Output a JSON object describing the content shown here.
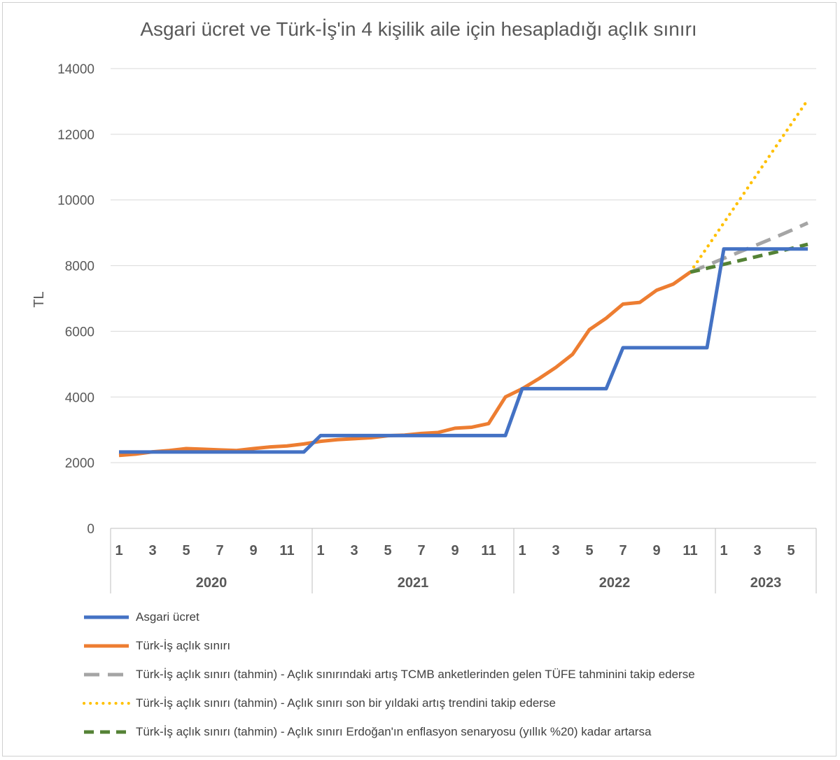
{
  "chart_data": {
    "type": "line",
    "title": "Asgari ücret ve Türk-İş'in 4 kişilik aile için hesapladığı açlık sınırı",
    "ylabel": "TL",
    "xlabel": "",
    "ylim": [
      0,
      14000
    ],
    "yticks": [
      "0",
      "2000",
      "4000",
      "6000",
      "8000",
      "10000",
      "12000",
      "14000"
    ],
    "years": [
      {
        "label": "2020",
        "months": 12
      },
      {
        "label": "2021",
        "months": 12
      },
      {
        "label": "2022",
        "months": 12
      },
      {
        "label": "2023",
        "months": 6
      }
    ],
    "month_labels_shown": [
      "1",
      "3",
      "5",
      "7",
      "9",
      "11"
    ],
    "grid": true,
    "legend_position": "bottom",
    "series": [
      {
        "name": "Asgari ücret",
        "color": "#4472C4",
        "dash": "solid",
        "start": 0,
        "values": [
          2324.7,
          2324.7,
          2324.7,
          2324.7,
          2324.7,
          2324.7,
          2324.7,
          2324.7,
          2324.7,
          2324.7,
          2324.7,
          2324.7,
          2825.9,
          2825.9,
          2825.9,
          2825.9,
          2825.9,
          2825.9,
          2825.9,
          2825.9,
          2825.9,
          2825.9,
          2825.9,
          2825.9,
          4253.4,
          4253.4,
          4253.4,
          4253.4,
          4253.4,
          4253.4,
          5500.4,
          5500.4,
          5500.4,
          5500.4,
          5500.4,
          5500.4,
          8506.8,
          8506.8,
          8506.8,
          8506.8,
          8506.8,
          8506.8
        ]
      },
      {
        "name": "Türk-İş açlık sınırı",
        "color": "#ED7D31",
        "dash": "solid",
        "start": 0,
        "values": [
          2220,
          2260,
          2330,
          2370,
          2430,
          2410,
          2390,
          2370,
          2430,
          2480,
          2510,
          2570,
          2650,
          2700,
          2730,
          2760,
          2820,
          2840,
          2890,
          2920,
          3050,
          3080,
          3190,
          4000,
          4250,
          4560,
          4900,
          5300,
          6050,
          6400,
          6830,
          6880,
          7250,
          7440,
          7800
        ]
      },
      {
        "name": "Türk-İş açlık sınırı (tahmin) - Açlık sınırındaki artış TCMB anketlerinden gelen TÜFE tahminini takip ederse",
        "color": "#A5A5A5",
        "dash": "long",
        "start": 34,
        "values": [
          7800,
          8010,
          8220,
          8430,
          8640,
          8850,
          9070,
          9300
        ]
      },
      {
        "name": "Türk-İş açlık sınırı (tahmin) - Açlık sınırı son bir yıldaki artış trendini takip ederse",
        "color": "#FFC000",
        "dash": "dot",
        "start": 34,
        "values": [
          7800,
          8550,
          9300,
          10050,
          10800,
          11550,
          12300,
          13050
        ]
      },
      {
        "name": "Türk-İş açlık sınırı (tahmin) - Açlık sınırı Erdoğan'ın enflasyon senaryosu (yıllık %20) kadar artarsa",
        "color": "#548235",
        "dash": "dash",
        "start": 34,
        "values": [
          7800,
          7920,
          8040,
          8160,
          8280,
          8400,
          8520,
          8650
        ]
      }
    ]
  }
}
